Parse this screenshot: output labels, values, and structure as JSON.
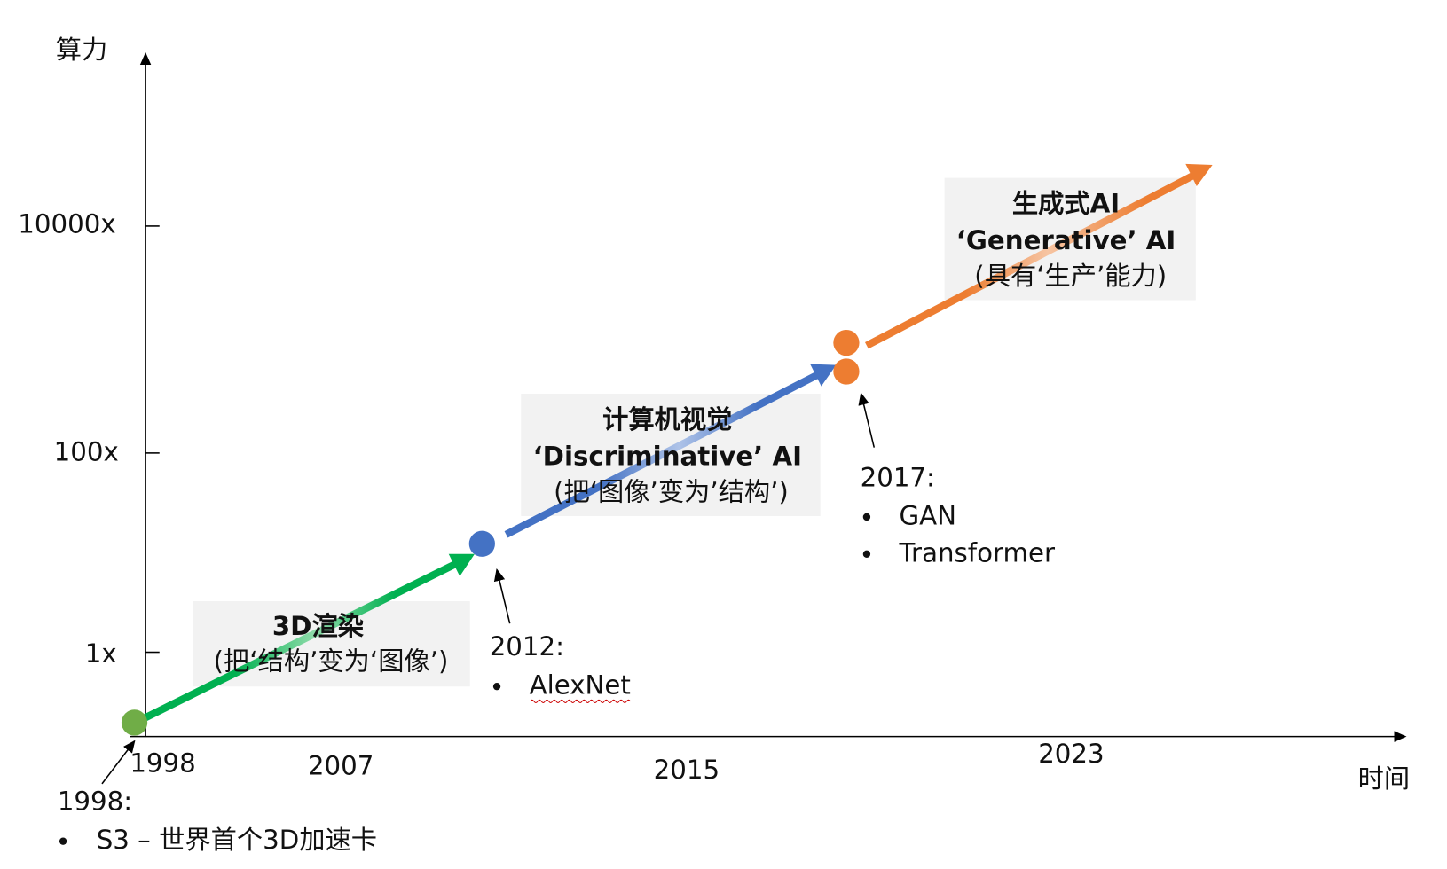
{
  "axes": {
    "y_label": "算力",
    "x_label": "时间",
    "y_ticks": [
      "10000x",
      "100x",
      "1x"
    ],
    "x_ticks": [
      "1998",
      "2007",
      "2015",
      "2023"
    ]
  },
  "phases": [
    {
      "title": "3D渲染",
      "subtitle": "(把‘结构’变为‘图像’)"
    },
    {
      "title": "计算机视觉",
      "title2": "‘Discriminative’ AI",
      "subtitle": "(把‘图像’变为’结构’)"
    },
    {
      "title": "生成式AI",
      "title2": "‘Generative’ AI",
      "subtitle": "(具有‘生产’能力)"
    }
  ],
  "milestones": [
    {
      "year": "1998:",
      "items": [
        "S3 – 世界首个3D加速卡"
      ]
    },
    {
      "year": "2012:",
      "items": [
        "AlexNet"
      ]
    },
    {
      "year": "2017:",
      "items": [
        "GAN",
        "Transformer"
      ]
    }
  ]
}
